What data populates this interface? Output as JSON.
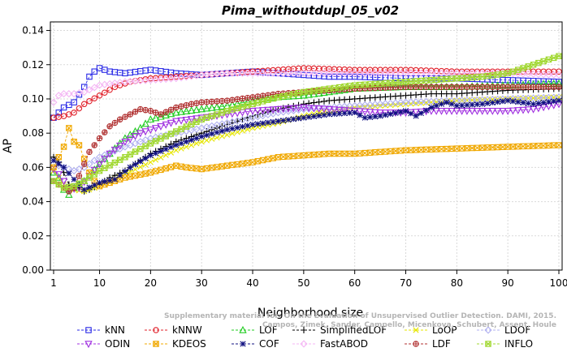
{
  "chart_data": {
    "type": "line",
    "title": "Pima_withoutdupl_05_v02",
    "xlabel": "Neighborhood size",
    "ylabel": "AP",
    "xlim": [
      1,
      100
    ],
    "ylim": [
      0,
      0.145
    ],
    "xticks": [
      1,
      10,
      20,
      30,
      40,
      50,
      60,
      70,
      80,
      90,
      100
    ],
    "yticks": [
      0.0,
      0.02,
      0.04,
      0.06,
      0.08,
      0.1,
      0.12,
      0.14
    ],
    "ytick_labels": [
      "0.00",
      "0.02",
      "0.04",
      "0.06",
      "0.08",
      "0.10",
      "0.12",
      "0.14"
    ],
    "grid": true,
    "legend_position": "bottom",
    "series": [
      {
        "name": "kNN",
        "color": "#2a2ae6",
        "marker": "square",
        "points": [
          [
            1,
            0.089
          ],
          [
            3,
            0.095
          ],
          [
            5,
            0.098
          ],
          [
            7,
            0.107
          ],
          [
            8,
            0.113
          ],
          [
            9,
            0.116
          ],
          [
            10,
            0.118
          ],
          [
            12,
            0.116
          ],
          [
            15,
            0.115
          ],
          [
            20,
            0.117
          ],
          [
            25,
            0.115
          ],
          [
            30,
            0.114
          ],
          [
            35,
            0.115
          ],
          [
            40,
            0.116
          ],
          [
            45,
            0.115
          ],
          [
            50,
            0.114
          ],
          [
            55,
            0.113
          ],
          [
            60,
            0.113
          ],
          [
            70,
            0.112
          ],
          [
            80,
            0.112
          ],
          [
            90,
            0.111
          ],
          [
            100,
            0.11
          ]
        ]
      },
      {
        "name": "kNNW",
        "color": "#e0202a",
        "marker": "circle",
        "points": [
          [
            1,
            0.089
          ],
          [
            3,
            0.09
          ],
          [
            5,
            0.092
          ],
          [
            7,
            0.097
          ],
          [
            10,
            0.102
          ],
          [
            13,
            0.107
          ],
          [
            16,
            0.11
          ],
          [
            20,
            0.112
          ],
          [
            25,
            0.113
          ],
          [
            30,
            0.114
          ],
          [
            35,
            0.115
          ],
          [
            40,
            0.116
          ],
          [
            45,
            0.117
          ],
          [
            50,
            0.118
          ],
          [
            60,
            0.117
          ],
          [
            70,
            0.117
          ],
          [
            80,
            0.116
          ],
          [
            90,
            0.116
          ],
          [
            100,
            0.116
          ]
        ]
      },
      {
        "name": "LOF",
        "color": "#22cc22",
        "marker": "triangle",
        "points": [
          [
            1,
            0.057
          ],
          [
            2,
            0.054
          ],
          [
            3,
            0.047
          ],
          [
            4,
            0.044
          ],
          [
            5,
            0.048
          ],
          [
            7,
            0.052
          ],
          [
            10,
            0.062
          ],
          [
            12,
            0.068
          ],
          [
            15,
            0.077
          ],
          [
            18,
            0.083
          ],
          [
            20,
            0.088
          ],
          [
            25,
            0.092
          ],
          [
            30,
            0.094
          ],
          [
            35,
            0.096
          ],
          [
            40,
            0.099
          ],
          [
            45,
            0.101
          ],
          [
            50,
            0.102
          ],
          [
            55,
            0.104
          ],
          [
            60,
            0.106
          ],
          [
            70,
            0.107
          ],
          [
            80,
            0.107
          ],
          [
            90,
            0.108
          ],
          [
            100,
            0.109
          ]
        ]
      },
      {
        "name": "SimplifiedLOF",
        "color": "#000000",
        "marker": "plus",
        "points": [
          [
            1,
            0.066
          ],
          [
            2,
            0.063
          ],
          [
            3,
            0.057
          ],
          [
            4,
            0.05
          ],
          [
            5,
            0.048
          ],
          [
            6,
            0.048
          ],
          [
            7,
            0.046
          ],
          [
            8,
            0.047
          ],
          [
            10,
            0.05
          ],
          [
            12,
            0.054
          ],
          [
            15,
            0.058
          ],
          [
            20,
            0.068
          ],
          [
            25,
            0.075
          ],
          [
            30,
            0.08
          ],
          [
            35,
            0.085
          ],
          [
            40,
            0.09
          ],
          [
            45,
            0.094
          ],
          [
            50,
            0.097
          ],
          [
            55,
            0.099
          ],
          [
            60,
            0.1
          ],
          [
            65,
            0.101
          ],
          [
            70,
            0.102
          ],
          [
            75,
            0.103
          ],
          [
            80,
            0.103
          ],
          [
            90,
            0.105
          ],
          [
            100,
            0.106
          ]
        ]
      },
      {
        "name": "LoOP",
        "color": "#e6e600",
        "marker": "x",
        "points": [
          [
            1,
            0.058
          ],
          [
            3,
            0.05
          ],
          [
            5,
            0.047
          ],
          [
            7,
            0.046
          ],
          [
            10,
            0.049
          ],
          [
            15,
            0.056
          ],
          [
            20,
            0.063
          ],
          [
            25,
            0.07
          ],
          [
            30,
            0.075
          ],
          [
            35,
            0.079
          ],
          [
            40,
            0.083
          ],
          [
            45,
            0.086
          ],
          [
            50,
            0.09
          ],
          [
            55,
            0.093
          ],
          [
            60,
            0.095
          ],
          [
            70,
            0.097
          ],
          [
            80,
            0.099
          ],
          [
            90,
            0.1
          ],
          [
            100,
            0.101
          ]
        ]
      },
      {
        "name": "LDOF",
        "color": "#b0b0f0",
        "marker": "diamond",
        "points": [
          [
            1,
            0.062
          ],
          [
            3,
            0.06
          ],
          [
            5,
            0.058
          ],
          [
            7,
            0.06
          ],
          [
            10,
            0.066
          ],
          [
            15,
            0.072
          ],
          [
            20,
            0.077
          ],
          [
            25,
            0.08
          ],
          [
            30,
            0.083
          ],
          [
            35,
            0.086
          ],
          [
            40,
            0.089
          ],
          [
            45,
            0.092
          ],
          [
            50,
            0.094
          ],
          [
            60,
            0.096
          ],
          [
            70,
            0.098
          ],
          [
            80,
            0.099
          ],
          [
            90,
            0.1
          ],
          [
            100,
            0.101
          ]
        ]
      },
      {
        "name": "ODIN",
        "color": "#a030e0",
        "marker": "triangle-down",
        "points": [
          [
            1,
            0.059
          ],
          [
            2,
            0.056
          ],
          [
            3,
            0.052
          ],
          [
            4,
            0.047
          ],
          [
            6,
            0.048
          ],
          [
            8,
            0.055
          ],
          [
            10,
            0.062
          ],
          [
            12,
            0.068
          ],
          [
            15,
            0.075
          ],
          [
            18,
            0.08
          ],
          [
            20,
            0.082
          ],
          [
            25,
            0.087
          ],
          [
            30,
            0.089
          ],
          [
            35,
            0.091
          ],
          [
            40,
            0.093
          ],
          [
            45,
            0.094
          ],
          [
            50,
            0.095
          ],
          [
            55,
            0.094
          ],
          [
            60,
            0.093
          ],
          [
            65,
            0.092
          ],
          [
            70,
            0.092
          ],
          [
            75,
            0.093
          ],
          [
            80,
            0.093
          ],
          [
            85,
            0.093
          ],
          [
            90,
            0.093
          ],
          [
            95,
            0.094
          ],
          [
            100,
            0.097
          ]
        ]
      },
      {
        "name": "KDEOS",
        "color": "#f0a800",
        "marker": "square-x",
        "points": [
          [
            1,
            0.06
          ],
          [
            2,
            0.066
          ],
          [
            3,
            0.072
          ],
          [
            4,
            0.083
          ],
          [
            5,
            0.075
          ],
          [
            6,
            0.073
          ],
          [
            7,
            0.065
          ],
          [
            8,
            0.057
          ],
          [
            9,
            0.052
          ],
          [
            10,
            0.049
          ],
          [
            12,
            0.051
          ],
          [
            15,
            0.054
          ],
          [
            20,
            0.057
          ],
          [
            25,
            0.061
          ],
          [
            27,
            0.06
          ],
          [
            30,
            0.059
          ],
          [
            35,
            0.061
          ],
          [
            40,
            0.063
          ],
          [
            45,
            0.066
          ],
          [
            50,
            0.067
          ],
          [
            55,
            0.068
          ],
          [
            60,
            0.068
          ],
          [
            65,
            0.069
          ],
          [
            70,
            0.07
          ],
          [
            80,
            0.071
          ],
          [
            90,
            0.072
          ],
          [
            100,
            0.073
          ]
        ]
      },
      {
        "name": "COF",
        "color": "#101080",
        "marker": "star",
        "points": [
          [
            1,
            0.064
          ],
          [
            3,
            0.06
          ],
          [
            5,
            0.053
          ],
          [
            7,
            0.047
          ],
          [
            10,
            0.051
          ],
          [
            13,
            0.053
          ],
          [
            16,
            0.06
          ],
          [
            20,
            0.067
          ],
          [
            25,
            0.073
          ],
          [
            30,
            0.078
          ],
          [
            35,
            0.082
          ],
          [
            40,
            0.085
          ],
          [
            45,
            0.087
          ],
          [
            50,
            0.089
          ],
          [
            55,
            0.091
          ],
          [
            60,
            0.092
          ],
          [
            62,
            0.089
          ],
          [
            65,
            0.09
          ],
          [
            70,
            0.093
          ],
          [
            72,
            0.09
          ],
          [
            75,
            0.095
          ],
          [
            78,
            0.098
          ],
          [
            80,
            0.096
          ],
          [
            85,
            0.097
          ],
          [
            90,
            0.099
          ],
          [
            95,
            0.097
          ],
          [
            100,
            0.099
          ]
        ]
      },
      {
        "name": "FastABOD",
        "color": "#f4b6f4",
        "marker": "diamond",
        "points": [
          [
            1,
            0.098
          ],
          [
            2,
            0.102
          ],
          [
            3,
            0.103
          ],
          [
            5,
            0.103
          ],
          [
            7,
            0.104
          ],
          [
            10,
            0.108
          ],
          [
            15,
            0.11
          ],
          [
            20,
            0.111
          ],
          [
            25,
            0.112
          ],
          [
            30,
            0.114
          ],
          [
            35,
            0.115
          ],
          [
            40,
            0.115
          ],
          [
            50,
            0.115
          ],
          [
            60,
            0.115
          ],
          [
            70,
            0.115
          ],
          [
            80,
            0.115
          ],
          [
            90,
            0.115
          ],
          [
            100,
            0.114
          ]
        ]
      },
      {
        "name": "LDF",
        "color": "#b03030",
        "marker": "circle-plus",
        "points": [
          [
            1,
            0.052
          ],
          [
            2,
            0.05
          ],
          [
            3,
            0.048
          ],
          [
            4,
            0.046
          ],
          [
            5,
            0.048
          ],
          [
            6,
            0.055
          ],
          [
            8,
            0.069
          ],
          [
            10,
            0.077
          ],
          [
            12,
            0.084
          ],
          [
            14,
            0.088
          ],
          [
            16,
            0.091
          ],
          [
            18,
            0.094
          ],
          [
            20,
            0.093
          ],
          [
            22,
            0.091
          ],
          [
            25,
            0.095
          ],
          [
            28,
            0.097
          ],
          [
            30,
            0.098
          ],
          [
            35,
            0.099
          ],
          [
            40,
            0.101
          ],
          [
            45,
            0.103
          ],
          [
            50,
            0.104
          ],
          [
            60,
            0.106
          ],
          [
            70,
            0.107
          ],
          [
            80,
            0.107
          ],
          [
            90,
            0.107
          ],
          [
            100,
            0.107
          ]
        ]
      },
      {
        "name": "INFLO",
        "color": "#a0d830",
        "marker": "hourglass",
        "points": [
          [
            1,
            0.052
          ],
          [
            3,
            0.048
          ],
          [
            5,
            0.049
          ],
          [
            7,
            0.052
          ],
          [
            10,
            0.058
          ],
          [
            15,
            0.066
          ],
          [
            20,
            0.074
          ],
          [
            25,
            0.081
          ],
          [
            30,
            0.088
          ],
          [
            35,
            0.093
          ],
          [
            40,
            0.097
          ],
          [
            45,
            0.101
          ],
          [
            50,
            0.104
          ],
          [
            55,
            0.106
          ],
          [
            60,
            0.108
          ],
          [
            65,
            0.109
          ],
          [
            70,
            0.11
          ],
          [
            75,
            0.111
          ],
          [
            80,
            0.112
          ],
          [
            85,
            0.113
          ],
          [
            90,
            0.115
          ],
          [
            95,
            0.12
          ],
          [
            100,
            0.125
          ]
        ]
      }
    ]
  },
  "watermark": {
    "line1": "Supplementary material for: On the Evaluation of Unsupervised Outlier Detection. DAMI, 2015.",
    "line2": "Campos, Zimek, Sander, Campello, Micenkova, Schubert, Assent, Houle"
  }
}
